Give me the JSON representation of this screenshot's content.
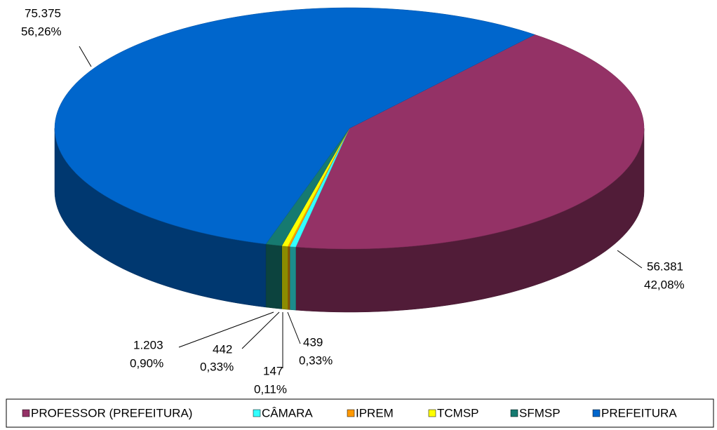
{
  "chart_data": {
    "type": "pie",
    "categories": [
      "PROFESSOR (PREFEITURA)",
      "CÂMARA",
      "IPREM",
      "TCMSP",
      "SFMSP",
      "PREFEITURA"
    ],
    "values": [
      56381,
      439,
      147,
      442,
      1203,
      75375
    ],
    "value_labels": [
      "56.381",
      "439",
      "147",
      "442",
      "1.203",
      "75.375"
    ],
    "percentages": [
      42.08,
      0.33,
      0.11,
      0.33,
      0.9,
      56.26
    ],
    "percentage_labels": [
      "42,08%",
      "0,33%",
      "0,11%",
      "0,33%",
      "0,90%",
      "56,26%"
    ],
    "colors": [
      "#943266",
      "#33ffff",
      "#ff9900",
      "#ffff00",
      "#167a70",
      "#0066cc"
    ],
    "legend": "bottom"
  }
}
